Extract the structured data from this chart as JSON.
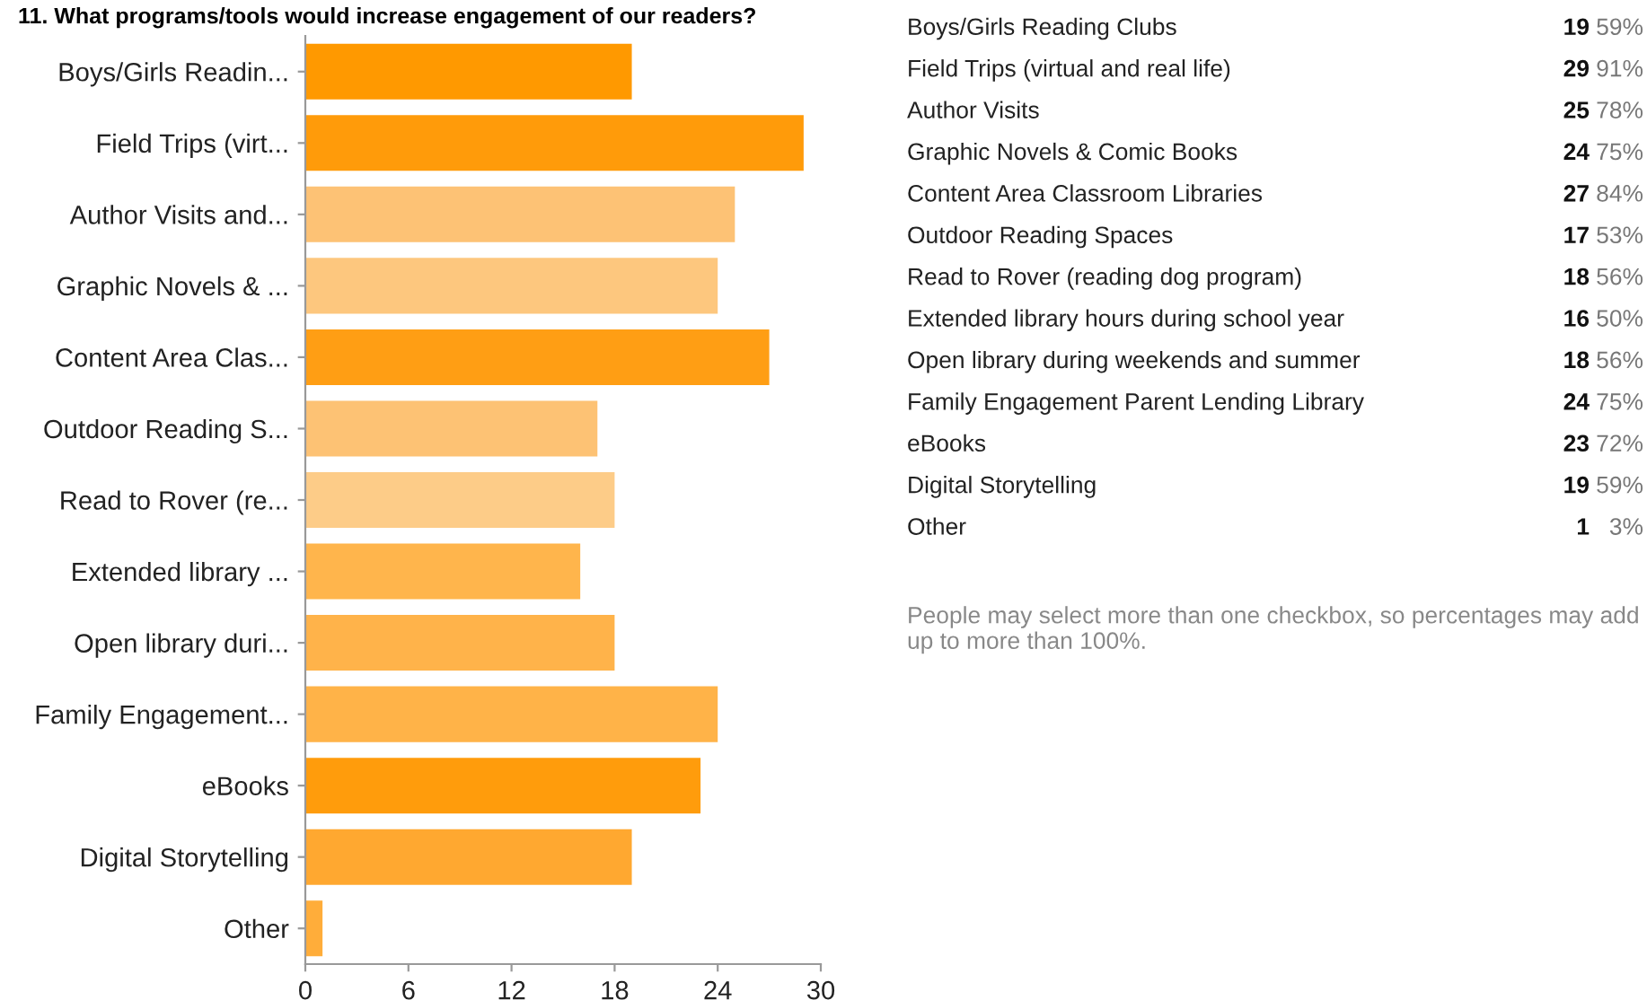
{
  "chart_data": [
    {
      "type": "bar",
      "orientation": "horizontal",
      "title": "11. What programs/tools would increase engagement of our readers?",
      "categories": [
        "Boys/Girls Readin...",
        "Field Trips (virt...",
        "Author Visits and...",
        "Graphic Novels & ...",
        "Content Area Clas...",
        "Outdoor Reading S...",
        "Read to Rover (re...",
        "Extended library ...",
        "Open library duri...",
        "Family Engagement...",
        "eBooks",
        "Digital Storytelling",
        "Other"
      ],
      "values": [
        19,
        29,
        25,
        24,
        27,
        17,
        18,
        16,
        18,
        24,
        23,
        19,
        1
      ],
      "colors": [
        "#ff9900",
        "#ff9b0a",
        "#fdc275",
        "#fdc77e",
        "#ff9e14",
        "#fdc274",
        "#fdcc88",
        "#ffb54c",
        "#ffb34a",
        "#ffb348",
        "#ff9c0c",
        "#ffa830",
        "#ffad3a"
      ],
      "xlim": [
        0,
        30
      ],
      "xticks": [
        0,
        6,
        12,
        18,
        24,
        30
      ],
      "grid": false
    },
    {
      "type": "other",
      "categories": [
        "Boys/Girls Reading Clubs",
        "Field Trips (virtual and real life)",
        "Author Visits",
        "Graphic Novels & Comic Books",
        "Content Area Classroom Libraries",
        "Outdoor Reading Spaces",
        "Read to Rover (reading dog program)",
        "Extended library hours during school year",
        "Open library during weekends and summer",
        "Family Engagement Parent Lending Library",
        "eBooks",
        "Digital Storytelling",
        "Other"
      ],
      "series": [
        {
          "values": [
            19,
            29,
            25,
            24,
            27,
            17,
            18,
            16,
            18,
            24,
            23,
            19,
            1
          ]
        },
        {
          "values": [
            59,
            91,
            78,
            75,
            84,
            53,
            56,
            50,
            56,
            75,
            72,
            59,
            3
          ],
          "value_labels": [
            "59%",
            "91%",
            "78%",
            "75%",
            "84%",
            "53%",
            "56%",
            "50%",
            "56%",
            "75%",
            "72%",
            "59%",
            "3%"
          ]
        }
      ],
      "data_labels": true,
      "annotations": [
        "People may select more than one checkbox, so percentages may add up to more than 100%."
      ]
    }
  ]
}
